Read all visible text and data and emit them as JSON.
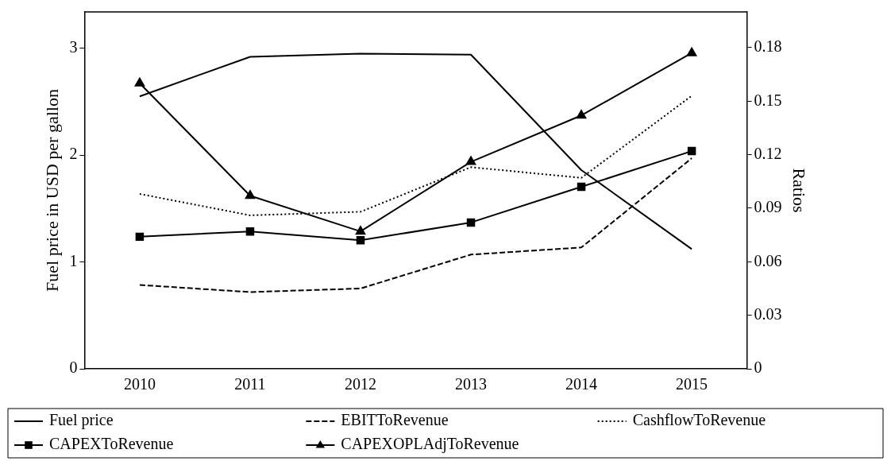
{
  "chart_data": {
    "type": "line",
    "categories": [
      "2010",
      "2011",
      "2012",
      "2013",
      "2014",
      "2015"
    ],
    "ylabel": "Fuel price in USD per gallon",
    "y2label": "Ratios",
    "ylim": [
      0,
      3.34
    ],
    "yticks": [
      0,
      1,
      2,
      3
    ],
    "y2lim": [
      0,
      0.2
    ],
    "y2ticks": [
      0,
      0.03,
      0.06,
      0.09,
      0.12,
      0.15,
      0.18
    ],
    "legend": "bottom",
    "grid": false,
    "series": [
      {
        "name": "Fuel price",
        "color": "#000000",
        "marker": "none",
        "line_style": "solid",
        "values": [
          2.55,
          2.92,
          2.95,
          2.94,
          1.86,
          1.12
        ]
      },
      {
        "name": "EBITToRevenue",
        "color": "#000000",
        "marker": "none",
        "line_style": "dashed",
        "axis": "y2",
        "values": [
          0.047,
          0.043,
          0.045,
          0.064,
          0.068,
          0.118
        ]
      },
      {
        "name": "CashflowToRevenue",
        "color": "#000000",
        "marker": "none",
        "line_style": "dotted",
        "axis": "y2",
        "values": [
          0.098,
          0.086,
          0.088,
          0.113,
          0.107,
          0.153
        ]
      },
      {
        "name": "CAPEXToRevenue",
        "color": "#000000",
        "marker": "square",
        "line_style": "solid",
        "axis": "y2",
        "values": [
          0.074,
          0.077,
          0.072,
          0.082,
          0.102,
          0.122
        ]
      },
      {
        "name": "CAPEXOPLAdjToRevenue",
        "color": "#000000",
        "marker": "triangle",
        "line_style": "solid",
        "axis": "y2",
        "values": [
          0.16,
          0.097,
          0.077,
          0.116,
          0.142,
          0.177
        ]
      }
    ]
  }
}
